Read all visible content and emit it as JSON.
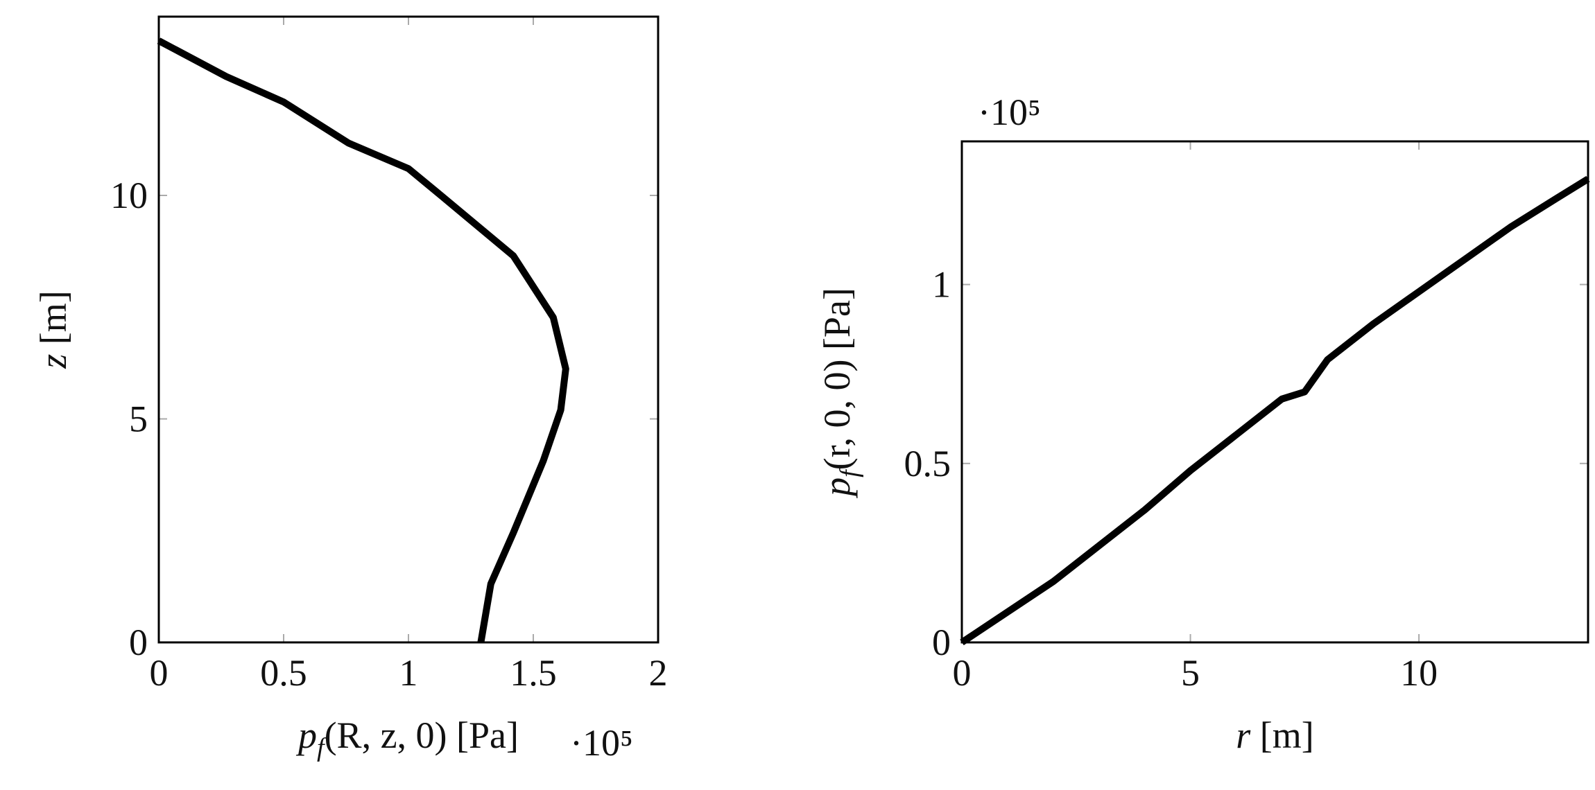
{
  "chart_data": [
    {
      "type": "line",
      "x": [
        0,
        0.27,
        0.5,
        0.76,
        1,
        1.13,
        1.42,
        1.58,
        1.63,
        1.61,
        1.54,
        1.42,
        1.33,
        1.29
      ],
      "values": [
        13.46,
        12.66,
        12.09,
        11.17,
        10.6,
        10.0,
        8.65,
        7.27,
        6.12,
        5.2,
        4.06,
        2.45,
        1.31,
        0
      ],
      "color": "#000000",
      "xlim": [
        0,
        2
      ],
      "xticks": [
        0,
        0.5,
        1,
        1.5,
        2
      ],
      "ylim": [
        0,
        14
      ],
      "yticks": [
        0,
        5,
        10
      ],
      "xlabel": [
        {
          "text": "p",
          "italic": true
        },
        {
          "text": "f",
          "italic": true,
          "sub": true
        },
        {
          "text": "(R, z, 0) [Pa]"
        }
      ],
      "ylabel": [
        {
          "text": "z",
          "italic": true
        },
        {
          "text": " [m]"
        }
      ],
      "x_multiplier": "·10⁵",
      "grid": false
    },
    {
      "type": "line",
      "x": [
        0,
        2,
        4,
        5,
        6,
        7,
        7.5,
        8,
        9,
        10,
        11,
        12,
        13,
        13.7
      ],
      "values": [
        0,
        0.17,
        0.37,
        0.48,
        0.58,
        0.68,
        0.7,
        0.79,
        0.89,
        0.98,
        1.07,
        1.16,
        1.24,
        1.295
      ],
      "color": "#000000",
      "xlim": [
        0,
        13.7
      ],
      "xticks": [
        0,
        5,
        10
      ],
      "ylim": [
        0,
        1.4
      ],
      "yticks": [
        0,
        0.5,
        1
      ],
      "xlabel": [
        {
          "text": "r",
          "italic": true
        },
        {
          "text": " [m]"
        }
      ],
      "ylabel": [
        {
          "text": "p",
          "italic": true
        },
        {
          "text": "f",
          "italic": true,
          "sub": true
        },
        {
          "text": "(r, 0, 0) [Pa]"
        }
      ],
      "y_multiplier": "·10⁵",
      "grid": false
    }
  ]
}
